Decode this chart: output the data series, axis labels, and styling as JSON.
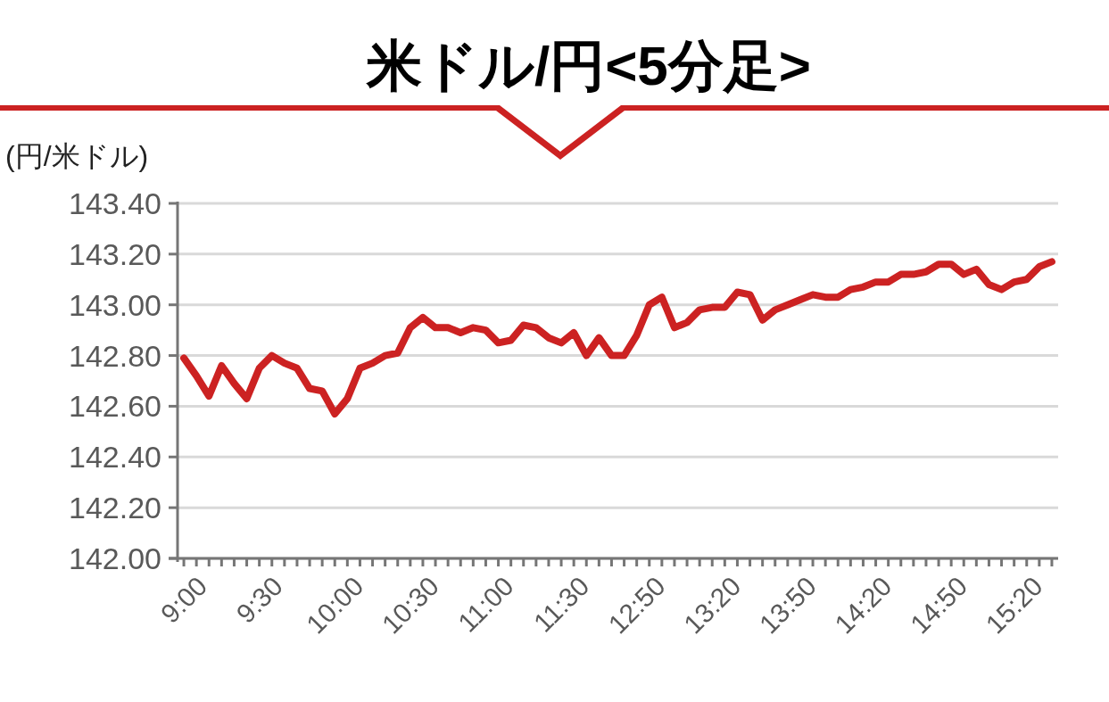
{
  "chart_data": {
    "type": "line",
    "title": "米ドル/円<5分足>",
    "ylabel": "(円/米ドル)",
    "categories": [
      "9:00",
      null,
      null,
      null,
      null,
      null,
      "9:30",
      null,
      null,
      null,
      null,
      null,
      "10:00",
      null,
      null,
      null,
      null,
      null,
      "10:30",
      null,
      null,
      null,
      null,
      null,
      "11:00",
      null,
      null,
      null,
      null,
      null,
      "11:30",
      null,
      null,
      null,
      null,
      null,
      "12:50",
      null,
      null,
      null,
      null,
      null,
      "13:20",
      null,
      null,
      null,
      null,
      null,
      "13:50",
      null,
      null,
      null,
      null,
      null,
      "14:20",
      null,
      null,
      null,
      null,
      null,
      "14:50",
      null,
      null,
      null,
      null,
      null,
      "15:20",
      null,
      null,
      null
    ],
    "series": [
      {
        "color": "#cc2222",
        "values": [
          142.79,
          142.72,
          142.64,
          142.76,
          142.69,
          142.63,
          142.75,
          142.8,
          142.77,
          142.75,
          142.67,
          142.66,
          142.57,
          142.63,
          142.75,
          142.77,
          142.8,
          142.81,
          142.91,
          142.95,
          142.91,
          142.91,
          142.89,
          142.91,
          142.9,
          142.85,
          142.86,
          142.92,
          142.91,
          142.87,
          142.85,
          142.89,
          142.8,
          142.87,
          142.8,
          142.8,
          142.88,
          143.0,
          143.03,
          142.91,
          142.93,
          142.98,
          142.99,
          142.99,
          143.05,
          143.04,
          142.94,
          142.98,
          143.0,
          143.02,
          143.04,
          143.03,
          143.03,
          143.06,
          143.07,
          143.09,
          143.09,
          143.12,
          143.12,
          143.13,
          143.16,
          143.16,
          143.12,
          143.14,
          143.08,
          143.06,
          143.09,
          143.1,
          143.15,
          143.17
        ]
      }
    ],
    "ylim": [
      142.0,
      143.4
    ],
    "yticks": [
      {
        "value": 142.0,
        "label": "142.00"
      },
      {
        "value": 142.2,
        "label": "142.20"
      },
      {
        "value": 142.4,
        "label": "142.40"
      },
      {
        "value": 142.6,
        "label": "142.60"
      },
      {
        "value": 142.8,
        "label": "142.80"
      },
      {
        "value": 143.0,
        "label": "143.00"
      },
      {
        "value": 143.2,
        "label": "143.20"
      },
      {
        "value": 143.4,
        "label": "143.40"
      }
    ],
    "grid": "y"
  }
}
